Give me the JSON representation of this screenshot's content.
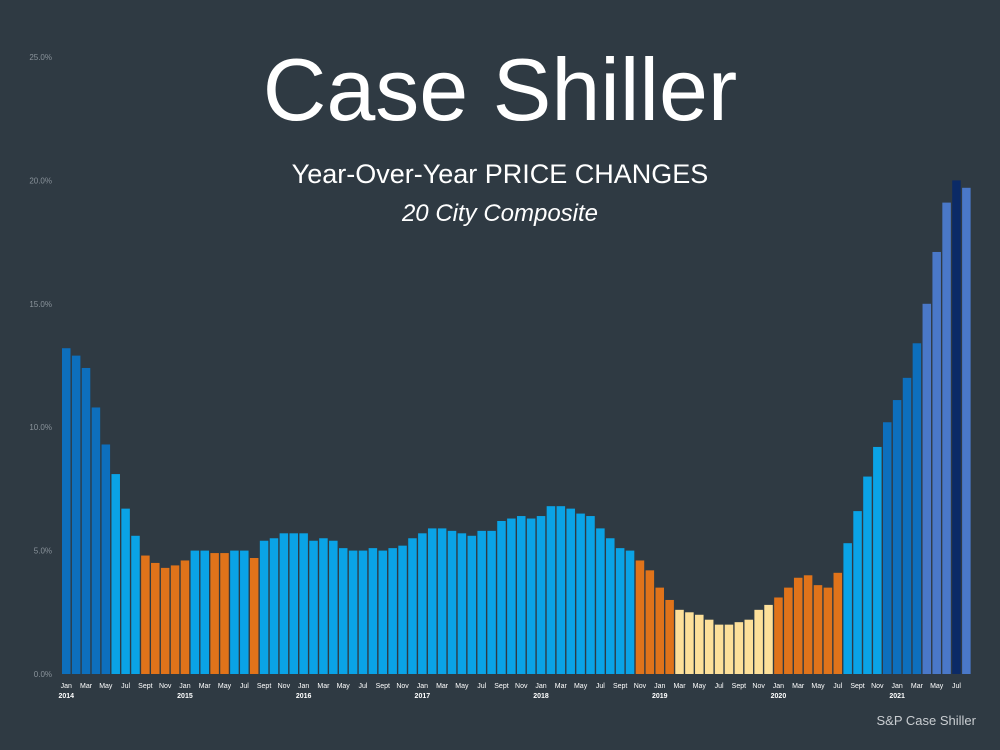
{
  "title": "Case Shiller",
  "subtitle": "Year-Over-Year PRICE CHANGES",
  "subtitle2": "20 City Composite",
  "source": "S&P Case Shiller",
  "colors": {
    "background": "#2f3a43",
    "dark_blue": "#0d6fbd",
    "light_blue": "#0aa3e6",
    "orange": "#e0731a",
    "yellow": "#fde09a",
    "periwinkle": "#4a78c8",
    "navy": "#0b2a66"
  },
  "chart_data": {
    "type": "bar",
    "ylim": [
      0,
      25
    ],
    "yticks": [
      "0.0%",
      "5.0%",
      "10.0%",
      "15.0%",
      "20.0%",
      "25.0%"
    ],
    "grid": false,
    "categories": [
      "Jan 2014",
      "Feb 2014",
      "Mar 2014",
      "Apr 2014",
      "May 2014",
      "Jun 2014",
      "Jul 2014",
      "Aug 2014",
      "Sept 2014",
      "Oct 2014",
      "Nov 2014",
      "Dec 2014",
      "Jan 2015",
      "Feb 2015",
      "Mar 2015",
      "Apr 2015",
      "May 2015",
      "Jun 2015",
      "Jul 2015",
      "Aug 2015",
      "Sept 2015",
      "Oct 2015",
      "Nov 2015",
      "Dec 2015",
      "Jan 2016",
      "Feb 2016",
      "Mar 2016",
      "Apr 2016",
      "May 2016",
      "Jun 2016",
      "Jul 2016",
      "Aug 2016",
      "Sept 2016",
      "Oct 2016",
      "Nov 2016",
      "Dec 2016",
      "Jan 2017",
      "Feb 2017",
      "Mar 2017",
      "Apr 2017",
      "May 2017",
      "Jun 2017",
      "Jul 2017",
      "Aug 2017",
      "Sept 2017",
      "Oct 2017",
      "Nov 2017",
      "Dec 2017",
      "Jan 2018",
      "Feb 2018",
      "Mar 2018",
      "Apr 2018",
      "May 2018",
      "Jun 2018",
      "Jul 2018",
      "Aug 2018",
      "Sept 2018",
      "Oct 2018",
      "Nov 2018",
      "Dec 2018",
      "Jan 2019",
      "Feb 2019",
      "Mar 2019",
      "Apr 2019",
      "May 2019",
      "Jun 2019",
      "Jul 2019",
      "Aug 2019",
      "Sept 2019",
      "Oct 2019",
      "Nov 2019",
      "Dec 2019",
      "Jan 2020",
      "Feb 2020",
      "Mar 2020",
      "Apr 2020",
      "May 2020",
      "Jun 2020",
      "Jul 2020",
      "Aug 2020",
      "Sept 2020",
      "Oct 2020",
      "Nov 2020",
      "Dec 2020",
      "Jan 2021",
      "Feb 2021",
      "Mar 2021",
      "Apr 2021",
      "May 2021",
      "Jun 2021",
      "Jul 2021",
      "Aug 2021"
    ],
    "values": [
      13.2,
      12.9,
      12.4,
      10.8,
      9.3,
      8.1,
      6.7,
      5.6,
      4.8,
      4.5,
      4.3,
      4.4,
      4.6,
      5.0,
      5.0,
      4.9,
      4.9,
      5.0,
      5.0,
      4.7,
      5.4,
      5.5,
      5.7,
      5.7,
      5.7,
      5.4,
      5.5,
      5.4,
      5.1,
      5.0,
      5.0,
      5.1,
      5.0,
      5.1,
      5.2,
      5.5,
      5.7,
      5.9,
      5.9,
      5.8,
      5.7,
      5.6,
      5.8,
      5.8,
      6.2,
      6.3,
      6.4,
      6.3,
      6.4,
      6.8,
      6.8,
      6.7,
      6.5,
      6.4,
      5.9,
      5.5,
      5.1,
      5.0,
      4.6,
      4.2,
      3.5,
      3.0,
      2.6,
      2.5,
      2.4,
      2.2,
      2.0,
      2.0,
      2.1,
      2.2,
      2.6,
      2.8,
      3.1,
      3.5,
      3.9,
      4.0,
      3.6,
      3.5,
      4.1,
      5.3,
      6.6,
      8.0,
      9.2,
      10.2,
      11.1,
      12.0,
      13.4,
      15.0,
      17.1,
      19.1,
      20.0,
      19.7
    ],
    "bar_colors": [
      "#0d6fbd",
      "#0d6fbd",
      "#0d6fbd",
      "#0d6fbd",
      "#0d6fbd",
      "#0aa3e6",
      "#0aa3e6",
      "#0aa3e6",
      "#e0731a",
      "#e0731a",
      "#e0731a",
      "#e0731a",
      "#e0731a",
      "#0aa3e6",
      "#0aa3e6",
      "#e0731a",
      "#e0731a",
      "#0aa3e6",
      "#0aa3e6",
      "#e0731a",
      "#0aa3e6",
      "#0aa3e6",
      "#0aa3e6",
      "#0aa3e6",
      "#0aa3e6",
      "#0aa3e6",
      "#0aa3e6",
      "#0aa3e6",
      "#0aa3e6",
      "#0aa3e6",
      "#0aa3e6",
      "#0aa3e6",
      "#0aa3e6",
      "#0aa3e6",
      "#0aa3e6",
      "#0aa3e6",
      "#0aa3e6",
      "#0aa3e6",
      "#0aa3e6",
      "#0aa3e6",
      "#0aa3e6",
      "#0aa3e6",
      "#0aa3e6",
      "#0aa3e6",
      "#0aa3e6",
      "#0aa3e6",
      "#0aa3e6",
      "#0aa3e6",
      "#0aa3e6",
      "#0aa3e6",
      "#0aa3e6",
      "#0aa3e6",
      "#0aa3e6",
      "#0aa3e6",
      "#0aa3e6",
      "#0aa3e6",
      "#0aa3e6",
      "#0aa3e6",
      "#e0731a",
      "#e0731a",
      "#e0731a",
      "#e0731a",
      "#fde09a",
      "#fde09a",
      "#fde09a",
      "#fde09a",
      "#fde09a",
      "#fde09a",
      "#fde09a",
      "#fde09a",
      "#fde09a",
      "#fde09a",
      "#e0731a",
      "#e0731a",
      "#e0731a",
      "#e0731a",
      "#e0731a",
      "#e0731a",
      "#e0731a",
      "#0aa3e6",
      "#0aa3e6",
      "#0aa3e6",
      "#0aa3e6",
      "#0d6fbd",
      "#0d6fbd",
      "#0d6fbd",
      "#0d6fbd",
      "#4a78c8",
      "#4a78c8",
      "#4a78c8",
      "#0b2a66",
      "#4a78c8"
    ],
    "x_labels": [
      {
        "index": 0,
        "month": "Jan",
        "year": "2014"
      },
      {
        "index": 2,
        "month": "Mar"
      },
      {
        "index": 4,
        "month": "May"
      },
      {
        "index": 6,
        "month": "Jul"
      },
      {
        "index": 8,
        "month": "Sept"
      },
      {
        "index": 10,
        "month": "Nov"
      },
      {
        "index": 12,
        "month": "Jan",
        "year": "2015"
      },
      {
        "index": 14,
        "month": "Mar"
      },
      {
        "index": 16,
        "month": "May"
      },
      {
        "index": 18,
        "month": "Jul"
      },
      {
        "index": 20,
        "month": "Sept"
      },
      {
        "index": 22,
        "month": "Nov"
      },
      {
        "index": 24,
        "month": "Jan",
        "year": "2016"
      },
      {
        "index": 26,
        "month": "Mar"
      },
      {
        "index": 28,
        "month": "May"
      },
      {
        "index": 30,
        "month": "Jul"
      },
      {
        "index": 32,
        "month": "Sept"
      },
      {
        "index": 34,
        "month": "Nov"
      },
      {
        "index": 36,
        "month": "Jan",
        "year": "2017"
      },
      {
        "index": 38,
        "month": "Mar"
      },
      {
        "index": 40,
        "month": "May"
      },
      {
        "index": 42,
        "month": "Jul"
      },
      {
        "index": 44,
        "month": "Sept"
      },
      {
        "index": 46,
        "month": "Nov"
      },
      {
        "index": 48,
        "month": "Jan",
        "year": "2018"
      },
      {
        "index": 50,
        "month": "Mar"
      },
      {
        "index": 52,
        "month": "May"
      },
      {
        "index": 54,
        "month": "Jul"
      },
      {
        "index": 56,
        "month": "Sept"
      },
      {
        "index": 58,
        "month": "Nov"
      },
      {
        "index": 60,
        "month": "Jan",
        "year": "2019"
      },
      {
        "index": 62,
        "month": "Mar"
      },
      {
        "index": 64,
        "month": "May"
      },
      {
        "index": 66,
        "month": "Jul"
      },
      {
        "index": 68,
        "month": "Sept"
      },
      {
        "index": 70,
        "month": "Nov"
      },
      {
        "index": 72,
        "month": "Jan",
        "year": "2020"
      },
      {
        "index": 74,
        "month": "Mar"
      },
      {
        "index": 76,
        "month": "May"
      },
      {
        "index": 78,
        "month": "Jul"
      },
      {
        "index": 80,
        "month": "Sept"
      },
      {
        "index": 82,
        "month": "Nov"
      },
      {
        "index": 84,
        "month": "Jan",
        "year": "2021"
      },
      {
        "index": 86,
        "month": "Mar"
      },
      {
        "index": 88,
        "month": "May"
      },
      {
        "index": 90,
        "month": "Jul"
      }
    ]
  }
}
